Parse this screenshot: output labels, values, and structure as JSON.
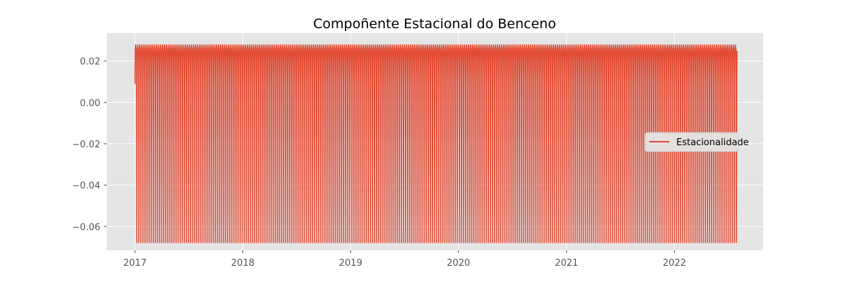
{
  "chart_data": {
    "type": "line",
    "title": "Compoñente Estacional do Benceno",
    "xlabel": "",
    "ylabel": "",
    "x_range": [
      "2017-01-01",
      "2022-08-01"
    ],
    "ylim": [
      -0.0715,
      0.0335
    ],
    "x_ticks": [
      "2017",
      "2018",
      "2019",
      "2020",
      "2021",
      "2022"
    ],
    "y_ticks": [
      0.02,
      0.0,
      -0.02,
      -0.04,
      -0.06
    ],
    "y_tick_labels": [
      "0.02",
      "0.00",
      "−0.02",
      "−0.04",
      "−0.06"
    ],
    "grid": true,
    "legend_position": "center-right",
    "series": [
      {
        "name": "Estacionalidade",
        "color": "#E24A33",
        "period_days": 7,
        "start": "2017-01-01",
        "end": "2022-08-01",
        "first_value": 0.009,
        "weekly_pattern": [
          0.009,
          0.025,
          0.028,
          0.027,
          0.026,
          0.02,
          -0.068
        ]
      }
    ]
  },
  "colors": {
    "plot_background": "#E5E5E5",
    "grid": "#FFFFFF",
    "line": "#E24A33"
  }
}
